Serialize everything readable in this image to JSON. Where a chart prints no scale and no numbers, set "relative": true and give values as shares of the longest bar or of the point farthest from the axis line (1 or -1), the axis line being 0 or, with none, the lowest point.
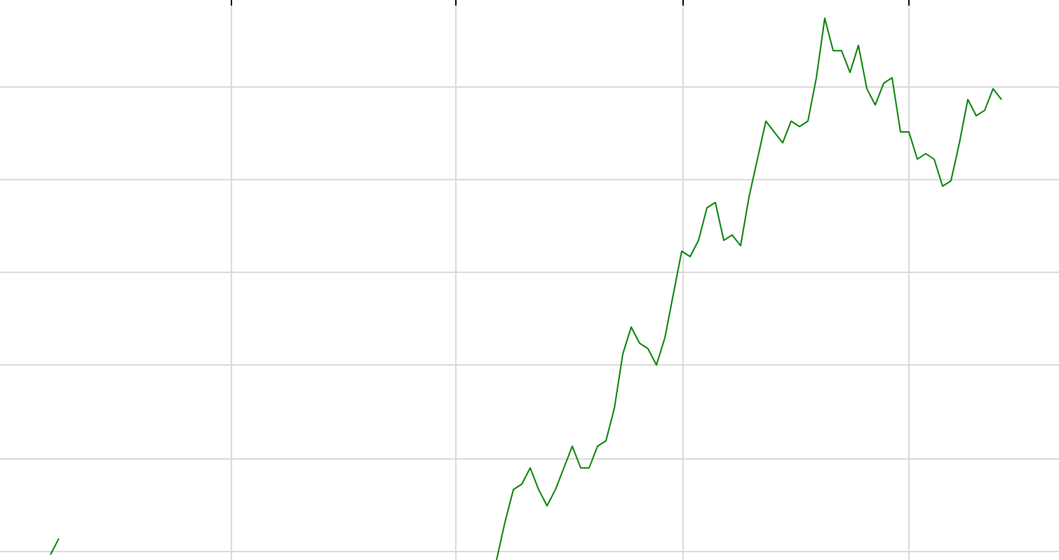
{
  "chart_data": {
    "type": "line",
    "relative": true,
    "grid": true,
    "categories": [
      null,
      null,
      null,
      null,
      null,
      null,
      null,
      null,
      null,
      null,
      null,
      null,
      null,
      null,
      null,
      null,
      null,
      null,
      null,
      null,
      null,
      null,
      null,
      null,
      null,
      null,
      null,
      null,
      null,
      null,
      null,
      null,
      null,
      null,
      null,
      null,
      null,
      null,
      null,
      null,
      null,
      null,
      null,
      null,
      null,
      null,
      null,
      null,
      null,
      null,
      null,
      null,
      null,
      null,
      null,
      null,
      null,
      null,
      null,
      null,
      null,
      null,
      null,
      null,
      null,
      null,
      null,
      null,
      null,
      null,
      null,
      null,
      null,
      null,
      null,
      null,
      null,
      null,
      null,
      null,
      null,
      null,
      null,
      null,
      null,
      null,
      null,
      null,
      null,
      null,
      null,
      null,
      null,
      null,
      null,
      null,
      null,
      null,
      null,
      null,
      null,
      null,
      null,
      null,
      null,
      null,
      null,
      null,
      null,
      null,
      null,
      null,
      null,
      null
    ],
    "series": [
      {
        "color": "#008000",
        "values": [
          0.01,
          0.04,
          null,
          null,
          null,
          null,
          null,
          null,
          null,
          null,
          null,
          null,
          null,
          null,
          null,
          null,
          null,
          null,
          null,
          null,
          null,
          null,
          null,
          null,
          null,
          null,
          null,
          null,
          null,
          null,
          null,
          null,
          null,
          null,
          null,
          null,
          null,
          null,
          null,
          null,
          null,
          null,
          null,
          null,
          null,
          null,
          null,
          null,
          null,
          null,
          null,
          null,
          null,
          null,
          null,
          null,
          null,
          null,
          null,
          null,
          null,
          null,
          null,
          null,
          null,
          null,
          null,
          null,
          null,
          null,
          null,
          null,
          null,
          null,
          null,
          null,
          null,
          null,
          null,
          null,
          null,
          null,
          null,
          null,
          null,
          null,
          null,
          null,
          null,
          null,
          null,
          null,
          null,
          null,
          null,
          null,
          null,
          null,
          null,
          null,
          null,
          null,
          null,
          null,
          null,
          null,
          null,
          null,
          null,
          null,
          null,
          null,
          null,
          null
        ]
      },
      {
        "color": "#008000",
        "values": [
          null,
          null,
          null,
          null,
          null,
          null,
          null,
          null,
          null,
          null,
          null,
          null,
          null,
          null,
          null,
          null,
          null,
          null,
          null,
          null,
          null,
          null,
          null,
          null,
          null,
          null,
          null,
          null,
          null,
          null,
          null,
          null,
          null,
          null,
          null,
          null,
          null,
          null,
          null,
          null,
          null,
          null,
          null,
          null,
          null,
          null,
          null,
          null,
          null,
          null,
          null,
          null,
          null,
          0,
          0.07,
          0.13,
          0.14,
          0.17,
          0.13,
          0.1,
          0.13,
          0.17,
          0.21,
          0.17,
          0.17,
          0.21,
          0.22,
          0.28,
          0.38,
          0.43,
          0.4,
          0.39,
          0.36,
          0.41,
          0.49,
          0.57,
          0.56,
          0.59,
          0.65,
          0.66,
          0.59,
          0.6,
          0.58,
          0.67,
          0.74,
          0.81,
          0.79,
          0.77,
          0.81,
          0.8,
          0.81,
          0.89,
          1.0,
          0.94,
          0.94,
          0.9,
          0.95,
          0.87,
          0.84,
          0.88,
          0.89,
          0.79,
          0.79,
          0.74,
          0.75,
          0.74,
          0.69,
          0.7,
          0.77,
          0.85,
          0.82,
          0.83,
          0.87,
          0.85
        ]
      }
    ]
  }
}
